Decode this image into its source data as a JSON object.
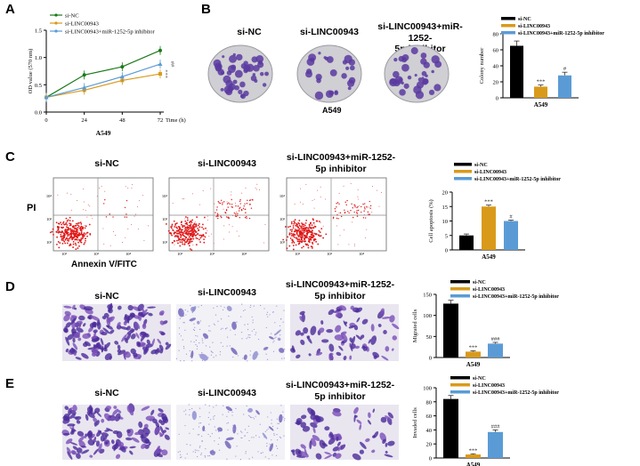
{
  "panel_labels": {
    "A": "A",
    "B": "B",
    "C": "C",
    "D": "D",
    "E": "E"
  },
  "conditions": {
    "si_nc": "si-NC",
    "si_linc": "si-LINC00943",
    "si_linc_inh_line1": "si-LINC00943+miR-1252-",
    "si_linc_inh_line2": "5p inhibitor",
    "combined_long": "si-LINC00943+miR-1252-5p inhibitor"
  },
  "cell_line": "A549",
  "flow_axes": {
    "y": "PI",
    "x": "Annexin V/FITC"
  },
  "colors": {
    "si_nc": "#000000",
    "si_linc": "#d99a1b",
    "si_linc_inh": "#5b9bd5",
    "line_green": "#1a7a1a",
    "purple": "#5b3aa0"
  },
  "chart_data": [
    {
      "id": "A",
      "type": "line",
      "ylabel": "OD value (570 nm)",
      "xlabel": "Time (h)",
      "xlabel_bottom": "A549",
      "x": [
        0,
        24,
        48,
        72
      ],
      "ylim": [
        0,
        1.5
      ],
      "yticks": [
        "0.0",
        "0.5",
        "1.0",
        "1.5"
      ],
      "xticks": [
        "0",
        "24",
        "48",
        "72"
      ],
      "series": [
        {
          "name": "si-NC",
          "values": [
            0.27,
            0.68,
            0.83,
            1.13
          ]
        },
        {
          "name": "si-LINC00943",
          "values": [
            0.27,
            0.4,
            0.58,
            0.7
          ]
        },
        {
          "name": "si-LINC00943+miR-1252-5p inhibitor",
          "values": [
            0.27,
            0.45,
            0.65,
            0.88
          ]
        }
      ],
      "annotations": [
        "***",
        "##"
      ]
    },
    {
      "id": "B",
      "type": "bar",
      "ylabel": "Colony number",
      "xlabel": "A549",
      "ylim": [
        0,
        80
      ],
      "yticks": [
        "0",
        "20",
        "40",
        "60",
        "80"
      ],
      "categories": [
        "si-NC",
        "si-LINC00943",
        "si-LINC00943+miR-1252-5p inhibitor"
      ],
      "values": [
        65,
        14,
        28
      ],
      "errors": [
        6,
        2,
        4
      ],
      "sig": [
        "",
        "***",
        "#"
      ]
    },
    {
      "id": "C",
      "type": "bar",
      "ylabel": "Cell apoptosis (%)",
      "xlabel": "A549",
      "ylim": [
        0,
        20
      ],
      "yticks": [
        "0",
        "5",
        "10",
        "15",
        "20"
      ],
      "categories": [
        "si-NC",
        "si-LINC00943",
        "si-LINC00943+miR-1252-5p inhibitor"
      ],
      "values": [
        5,
        15,
        10
      ],
      "errors": [
        0.5,
        0.5,
        0.3
      ],
      "sig": [
        "",
        "***",
        "#"
      ]
    },
    {
      "id": "D",
      "type": "bar",
      "ylabel": "Migrated cells",
      "xlabel": "A549",
      "ylim": [
        0,
        150
      ],
      "yticks": [
        "0",
        "50",
        "100",
        "150"
      ],
      "categories": [
        "si-NC",
        "si-LINC00943",
        "si-LINC00943+miR-1252-5p inhibitor"
      ],
      "values": [
        128,
        14,
        33
      ],
      "errors": [
        8,
        2,
        3
      ],
      "sig": [
        "",
        "***",
        "###"
      ]
    },
    {
      "id": "E",
      "type": "bar",
      "ylabel": "Invaded cells",
      "xlabel": "A549",
      "ylim": [
        0,
        100
      ],
      "yticks": [
        "0",
        "20",
        "40",
        "60",
        "80",
        "100"
      ],
      "categories": [
        "si-NC",
        "si-LINC00943",
        "si-LINC00943+miR-1252-5p inhibitor"
      ],
      "values": [
        84,
        5,
        37
      ],
      "errors": [
        5,
        1,
        3
      ],
      "sig": [
        "",
        "***",
        "###"
      ]
    }
  ]
}
